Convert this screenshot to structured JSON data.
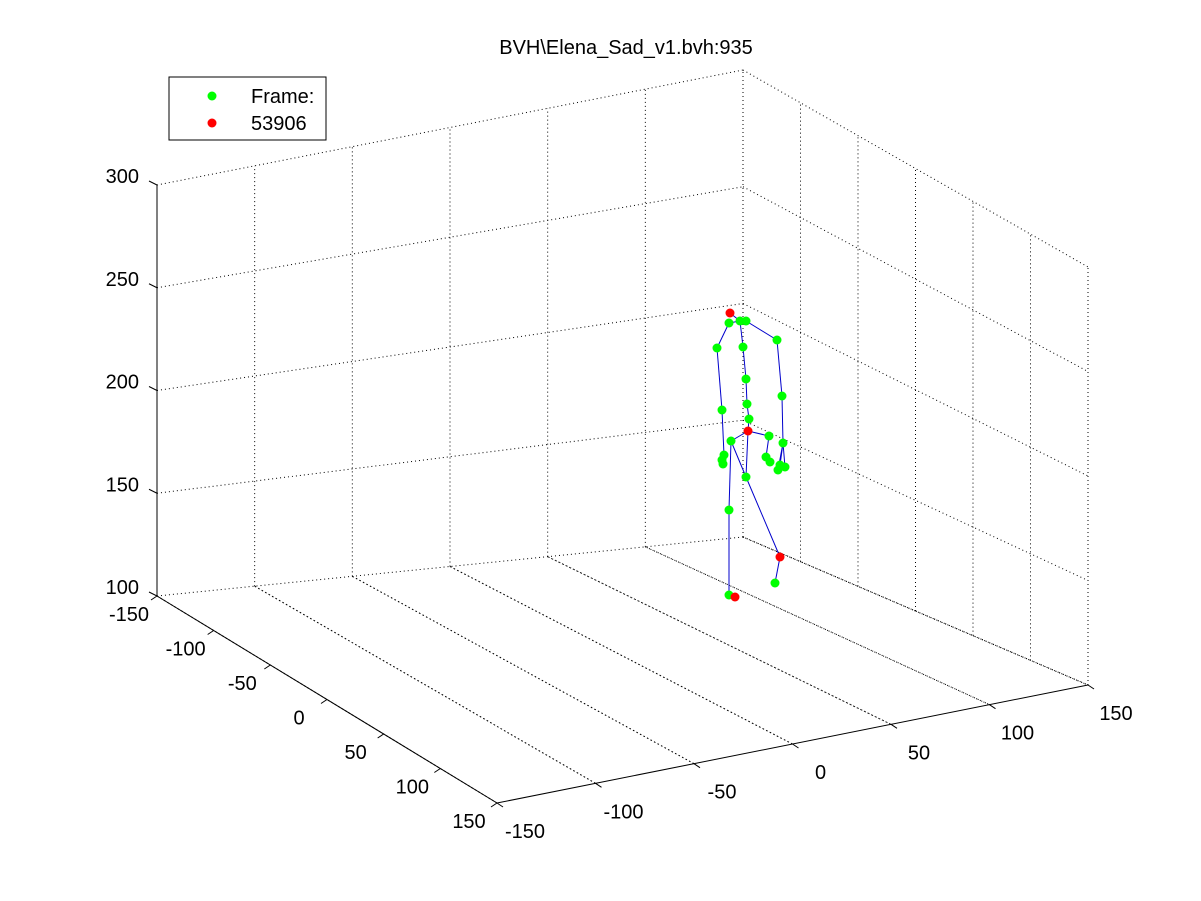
{
  "chart_data": {
    "type": "scatter",
    "title": "BVH\\Elena_Sad_v1.bvh:935",
    "xlabel": "",
    "ylabel": "",
    "zlabel": "",
    "xlim": [
      -150,
      150
    ],
    "ylim": [
      -150,
      150
    ],
    "zlim": [
      100,
      300
    ],
    "x_ticks": [
      "-150",
      "-100",
      "-50",
      "0",
      "50",
      "100",
      "150"
    ],
    "y_ticks": [
      "-150",
      "-100",
      "-50",
      "0",
      "50",
      "100",
      "150"
    ],
    "z_ticks": [
      "100",
      "150",
      "200",
      "250",
      "300"
    ],
    "grid": true,
    "legend_position": "top-left",
    "legend": [
      {
        "label": "Frame:",
        "color": "#00ff00"
      },
      {
        "label": "53906",
        "color": "#ff0000"
      }
    ],
    "colors": {
      "joint": "#00ff00",
      "highlight": "#ff0000",
      "bone": "#0000cc"
    },
    "joints_screen_projection": [
      {
        "id": "hips",
        "u": 746,
        "v": 477,
        "c": "g"
      },
      {
        "id": "spine",
        "u": 748,
        "v": 431,
        "c": "r"
      },
      {
        "id": "spine1",
        "u": 749,
        "v": 419,
        "c": "g"
      },
      {
        "id": "spine2",
        "u": 747,
        "v": 404,
        "c": "g"
      },
      {
        "id": "spine3",
        "u": 746,
        "v": 379,
        "c": "g"
      },
      {
        "id": "neck",
        "u": 743,
        "v": 347,
        "c": "g"
      },
      {
        "id": "head",
        "u": 740,
        "v": 321,
        "c": "g"
      },
      {
        "id": "headtop",
        "u": 730,
        "v": 313,
        "c": "r"
      },
      {
        "id": "lclav",
        "u": 729,
        "v": 323,
        "c": "g"
      },
      {
        "id": "lshoulder",
        "u": 717,
        "v": 348,
        "c": "g"
      },
      {
        "id": "lelbow",
        "u": 722,
        "v": 410,
        "c": "g"
      },
      {
        "id": "lwrist",
        "u": 724,
        "v": 455,
        "c": "g"
      },
      {
        "id": "lhand1",
        "u": 722,
        "v": 460,
        "c": "g"
      },
      {
        "id": "lhand2",
        "u": 723,
        "v": 464,
        "c": "g"
      },
      {
        "id": "rclav",
        "u": 746,
        "v": 321,
        "c": "g"
      },
      {
        "id": "rshoulder",
        "u": 777,
        "v": 340,
        "c": "g"
      },
      {
        "id": "relbow",
        "u": 782,
        "v": 396,
        "c": "g"
      },
      {
        "id": "rwrist",
        "u": 783,
        "v": 443,
        "c": "g"
      },
      {
        "id": "rhand1",
        "u": 780,
        "v": 465,
        "c": "g"
      },
      {
        "id": "rhand2",
        "u": 785,
        "v": 467,
        "c": "g"
      },
      {
        "id": "rhand3",
        "u": 778,
        "v": 470,
        "c": "g"
      },
      {
        "id": "lhip",
        "u": 731,
        "v": 441,
        "c": "g"
      },
      {
        "id": "lknee",
        "u": 729,
        "v": 510,
        "c": "g"
      },
      {
        "id": "lankle",
        "u": 729,
        "v": 595,
        "c": "g"
      },
      {
        "id": "ltoe",
        "u": 735,
        "v": 597,
        "c": "r"
      },
      {
        "id": "rhip",
        "u": 769,
        "v": 436,
        "c": "g"
      },
      {
        "id": "rknee",
        "u": 766,
        "v": 457,
        "c": "g"
      },
      {
        "id": "rknee2",
        "u": 770,
        "v": 462,
        "c": "g"
      },
      {
        "id": "rankle",
        "u": 780,
        "v": 557,
        "c": "r"
      },
      {
        "id": "rtoe",
        "u": 775,
        "v": 583,
        "c": "g"
      }
    ],
    "bones": [
      [
        "hips",
        "spine"
      ],
      [
        "spine",
        "spine1"
      ],
      [
        "spine1",
        "spine2"
      ],
      [
        "spine2",
        "spine3"
      ],
      [
        "spine3",
        "neck"
      ],
      [
        "neck",
        "head"
      ],
      [
        "head",
        "headtop"
      ],
      [
        "head",
        "lclav"
      ],
      [
        "lclav",
        "lshoulder"
      ],
      [
        "lshoulder",
        "lelbow"
      ],
      [
        "lelbow",
        "lwrist"
      ],
      [
        "lwrist",
        "lhand1"
      ],
      [
        "lhand1",
        "lhand2"
      ],
      [
        "head",
        "rclav"
      ],
      [
        "rclav",
        "rshoulder"
      ],
      [
        "rshoulder",
        "relbow"
      ],
      [
        "relbow",
        "rwrist"
      ],
      [
        "rwrist",
        "rhand1"
      ],
      [
        "rwrist",
        "rhand2"
      ],
      [
        "rwrist",
        "rhand3"
      ],
      [
        "hips",
        "lhip"
      ],
      [
        "lhip",
        "lknee"
      ],
      [
        "lknee",
        "lankle"
      ],
      [
        "lankle",
        "ltoe"
      ],
      [
        "spine",
        "rhip"
      ],
      [
        "rhip",
        "rknee"
      ],
      [
        "rknee",
        "rknee2"
      ],
      [
        "hips",
        "rankle"
      ],
      [
        "rankle",
        "rtoe"
      ],
      [
        "spine",
        "lhip"
      ]
    ]
  }
}
